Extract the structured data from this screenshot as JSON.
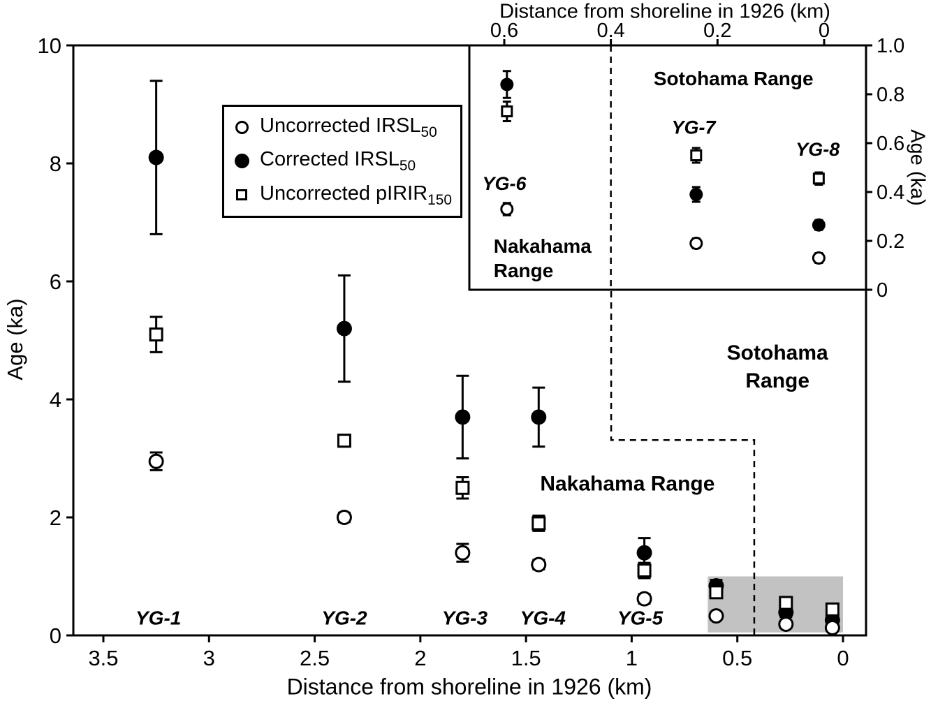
{
  "chart_data": {
    "type": "scatter",
    "palette": {
      "ink": "#000000",
      "background": "#ffffff",
      "shade": "#c2c2c2"
    },
    "legend": {
      "items": [
        {
          "marker": "open-circle",
          "text": "Uncorrected IRSL",
          "sub": "50"
        },
        {
          "marker": "filled-circle",
          "text": "Corrected IRSL",
          "sub": "50"
        },
        {
          "marker": "open-square",
          "text": "Uncorrected pIRIR",
          "sub": "150"
        }
      ]
    },
    "main": {
      "xlabel": "Distance from shoreline in 1926 (km)",
      "ylabel": "Age (ka)",
      "x_range": [
        3.64,
        -0.11
      ],
      "y_range": [
        0,
        10
      ],
      "x_ticks": [
        3.5,
        3,
        2.5,
        2,
        1.5,
        1,
        0.5,
        0
      ],
      "x_tick_labels": [
        "3.5",
        "3",
        "2.5",
        "2",
        "1.5",
        "1",
        "0.5",
        "0"
      ],
      "y_ticks": [
        0,
        2,
        4,
        6,
        8,
        10
      ],
      "y_tick_labels": [
        "0",
        "2",
        "4",
        "6",
        "8",
        "10"
      ],
      "shaded_region": {
        "x": [
          0.64,
          0.0
        ],
        "y": [
          0.05,
          1.0
        ],
        "color": "#c2c2c2"
      },
      "boundary_dashed": [
        [
          1.097,
          10
        ],
        [
          1.097,
          3.31
        ],
        [
          0.42,
          3.31
        ],
        [
          0.42,
          0
        ]
      ],
      "annotations": [
        {
          "text": "Nakahama Range",
          "x": 1.02,
          "y": 2.58
        },
        {
          "lines": [
            "Sotohama",
            "Range"
          ],
          "x": 0.31,
          "y": 4.8
        }
      ],
      "sites": [
        {
          "name": "YG-1",
          "x": 3.25,
          "corrected_irsl50": {
            "age": 8.1,
            "err": 1.3
          },
          "uncorrected_pirir150": {
            "age": 5.1,
            "err": 0.3
          },
          "uncorrected_irsl50": {
            "age": 2.95,
            "err": 0.15
          },
          "label": {
            "text": "YG-1",
            "x": 3.24,
            "y": 0.3
          }
        },
        {
          "name": "YG-2",
          "x": 2.36,
          "corrected_irsl50": {
            "age": 5.2,
            "err": 0.9
          },
          "uncorrected_pirir150": {
            "age": 3.3,
            "err": 0.1
          },
          "uncorrected_irsl50": {
            "age": 2.0,
            "err": 0.08
          },
          "label": {
            "text": "YG-2",
            "x": 2.36,
            "y": 0.3
          }
        },
        {
          "name": "YG-3",
          "x": 1.8,
          "corrected_irsl50": {
            "age": 3.7,
            "err": 0.7
          },
          "uncorrected_pirir150": {
            "age": 2.5,
            "err": 0.18
          },
          "uncorrected_irsl50": {
            "age": 1.4,
            "err": 0.15
          },
          "label": {
            "text": "YG-3",
            "x": 1.79,
            "y": 0.3
          }
        },
        {
          "name": "YG-4",
          "x": 1.44,
          "corrected_irsl50": {
            "age": 3.7,
            "err": 0.5
          },
          "uncorrected_pirir150": {
            "age": 1.9,
            "err": 0.13
          },
          "uncorrected_irsl50": {
            "age": 1.2,
            "err": 0.08
          },
          "label": {
            "text": "YG-4",
            "x": 1.42,
            "y": 0.3
          }
        },
        {
          "name": "YG-5",
          "x": 0.94,
          "corrected_irsl50": {
            "age": 1.4,
            "err": 0.25
          },
          "uncorrected_pirir150": {
            "age": 1.1,
            "err": 0.13
          },
          "uncorrected_irsl50": {
            "age": 0.62,
            "err": 0.08
          },
          "label": {
            "text": "YG-5",
            "x": 0.96,
            "y": 0.3
          }
        },
        {
          "name": "YG-6",
          "x": 0.6,
          "corrected_irsl50": {
            "age": 0.84,
            "err": 0.1
          },
          "uncorrected_pirir150": {
            "age": 0.73,
            "err": 0.09
          },
          "uncorrected_irsl50": {
            "age": 0.33,
            "err": 0.06
          }
        },
        {
          "name": "YG-7",
          "x": 0.27,
          "corrected_irsl50": {
            "age": 0.39,
            "err": 0.08
          },
          "uncorrected_pirir150": {
            "age": 0.55,
            "err": 0.1
          },
          "uncorrected_irsl50": {
            "age": 0.19,
            "err": 0.06
          }
        },
        {
          "name": "YG-8",
          "x": 0.05,
          "corrected_irsl50": {
            "age": 0.26,
            "err": 0.06
          },
          "uncorrected_pirir150": {
            "age": 0.44,
            "err": 0.07
          },
          "uncorrected_irsl50": {
            "age": 0.13,
            "err": 0.05
          }
        }
      ]
    },
    "inset": {
      "xlabel": "Distance from shoreline in 1926 (km)",
      "ylabel": "Age (ka)",
      "x_range": [
        0.666,
        -0.079
      ],
      "y_range": [
        0,
        1.0
      ],
      "x_ticks": [
        0.6,
        0.4,
        0.2,
        0
      ],
      "x_tick_labels": [
        "0.6",
        "0.4",
        "0.2",
        "0"
      ],
      "y_ticks": [
        0,
        0.2,
        0.4,
        0.6,
        0.8,
        1.0
      ],
      "y_tick_labels": [
        "0",
        "0.2",
        "0.4",
        "0.6",
        "0.8",
        "1.0"
      ],
      "boundary_x": 0.4,
      "annotations": [
        {
          "text": "Sotohama Range",
          "x": 0.17,
          "y": 0.865
        },
        {
          "lines": [
            "Nakahama",
            "Range"
          ],
          "x": 0.62,
          "y": 0.18,
          "anchor": "start"
        }
      ],
      "sites": [
        {
          "name": "YG-6",
          "x": 0.595,
          "corrected_irsl50": {
            "age": 0.84,
            "err": 0.055
          },
          "uncorrected_pirir150": {
            "age": 0.73,
            "err": 0.04
          },
          "uncorrected_irsl50": {
            "age": 0.33,
            "err": 0.025
          },
          "label": {
            "text": "YG-6",
            "x": 0.6,
            "y": 0.435
          }
        },
        {
          "name": "YG-7",
          "x": 0.24,
          "corrected_irsl50": {
            "age": 0.39,
            "err": 0.03
          },
          "uncorrected_pirir150": {
            "age": 0.55,
            "err": 0.03
          },
          "uncorrected_irsl50": {
            "age": 0.19,
            "err": 0.02
          },
          "label": {
            "text": "YG-7",
            "x": 0.245,
            "y": 0.665
          }
        },
        {
          "name": "YG-8",
          "x": 0.01,
          "corrected_irsl50": {
            "age": 0.265,
            "err": 0.02
          },
          "uncorrected_pirir150": {
            "age": 0.455,
            "err": 0.025
          },
          "uncorrected_irsl50": {
            "age": 0.13,
            "err": 0.02
          },
          "label": {
            "text": "YG-8",
            "x": 0.012,
            "y": 0.575
          }
        }
      ]
    }
  }
}
